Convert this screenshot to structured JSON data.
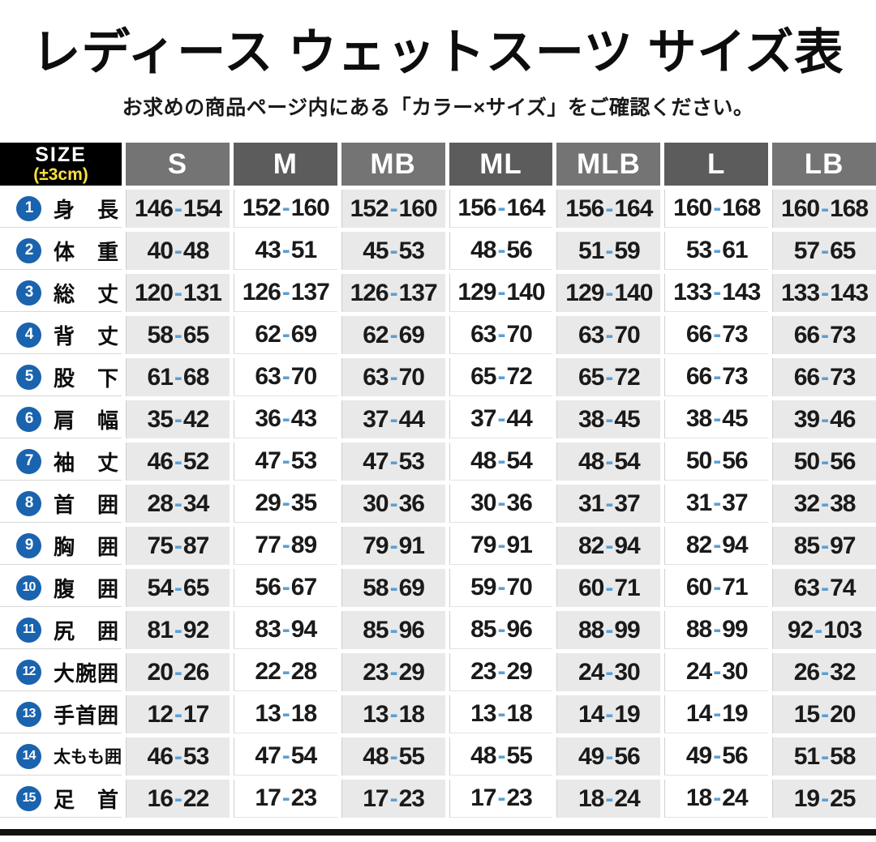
{
  "chart_data": {
    "type": "table",
    "title": "レディース ウェットスーツ サイズ表",
    "subtitle": "お求めの商品ページ内にある「カラー×サイズ」をご確認ください。",
    "corner_header": {
      "line1": "SIZE",
      "line2": "(±3cm)"
    },
    "columns": [
      "S",
      "M",
      "MB",
      "ML",
      "MLB",
      "L",
      "LB"
    ],
    "rows": [
      {
        "num": "1",
        "label": "身長",
        "values": [
          "146-154",
          "152-160",
          "152-160",
          "156-164",
          "156-164",
          "160-168",
          "160-168"
        ]
      },
      {
        "num": "2",
        "label": "体重",
        "values": [
          "40-48",
          "43-51",
          "45-53",
          "48-56",
          "51-59",
          "53-61",
          "57-65"
        ]
      },
      {
        "num": "3",
        "label": "総丈",
        "values": [
          "120-131",
          "126-137",
          "126-137",
          "129-140",
          "129-140",
          "133-143",
          "133-143"
        ]
      },
      {
        "num": "4",
        "label": "背丈",
        "values": [
          "58-65",
          "62-69",
          "62-69",
          "63-70",
          "63-70",
          "66-73",
          "66-73"
        ]
      },
      {
        "num": "5",
        "label": "股下",
        "values": [
          "61-68",
          "63-70",
          "63-70",
          "65-72",
          "65-72",
          "66-73",
          "66-73"
        ]
      },
      {
        "num": "6",
        "label": "肩幅",
        "values": [
          "35-42",
          "36-43",
          "37-44",
          "37-44",
          "38-45",
          "38-45",
          "39-46"
        ]
      },
      {
        "num": "7",
        "label": "袖丈",
        "values": [
          "46-52",
          "47-53",
          "47-53",
          "48-54",
          "48-54",
          "50-56",
          "50-56"
        ]
      },
      {
        "num": "8",
        "label": "首囲",
        "values": [
          "28-34",
          "29-35",
          "30-36",
          "30-36",
          "31-37",
          "31-37",
          "32-38"
        ]
      },
      {
        "num": "9",
        "label": "胸囲",
        "values": [
          "75-87",
          "77-89",
          "79-91",
          "79-91",
          "82-94",
          "82-94",
          "85-97"
        ]
      },
      {
        "num": "10",
        "label": "腹囲",
        "values": [
          "54-65",
          "56-67",
          "58-69",
          "59-70",
          "60-71",
          "60-71",
          "63-74"
        ]
      },
      {
        "num": "11",
        "label": "尻囲",
        "values": [
          "81-92",
          "83-94",
          "85-96",
          "85-96",
          "88-99",
          "88-99",
          "92-103"
        ]
      },
      {
        "num": "12",
        "label": "大腕囲",
        "values": [
          "20-26",
          "22-28",
          "23-29",
          "23-29",
          "24-30",
          "24-30",
          "26-32"
        ]
      },
      {
        "num": "13",
        "label": "手首囲",
        "values": [
          "12-17",
          "13-18",
          "13-18",
          "13-18",
          "14-19",
          "14-19",
          "15-20"
        ]
      },
      {
        "num": "14",
        "label": "太もも囲",
        "values": [
          "46-53",
          "47-54",
          "48-55",
          "48-55",
          "49-56",
          "49-56",
          "51-58"
        ]
      },
      {
        "num": "15",
        "label": "足首",
        "values": [
          "16-22",
          "17-23",
          "17-23",
          "17-23",
          "18-24",
          "18-24",
          "19-25"
        ]
      }
    ]
  },
  "colors": {
    "header_bg": "#747474",
    "header_bg_dark": "#5c5c5c",
    "corner_bg": "#000000",
    "tolerance_yellow": "#ffe23e",
    "row_number_blue": "#1a63ae",
    "range_dash_blue": "#5b9fd4",
    "alt_column_bg": "#e9e9e9",
    "value_text": "#1a1a1a",
    "bottom_bar": "#111111"
  }
}
